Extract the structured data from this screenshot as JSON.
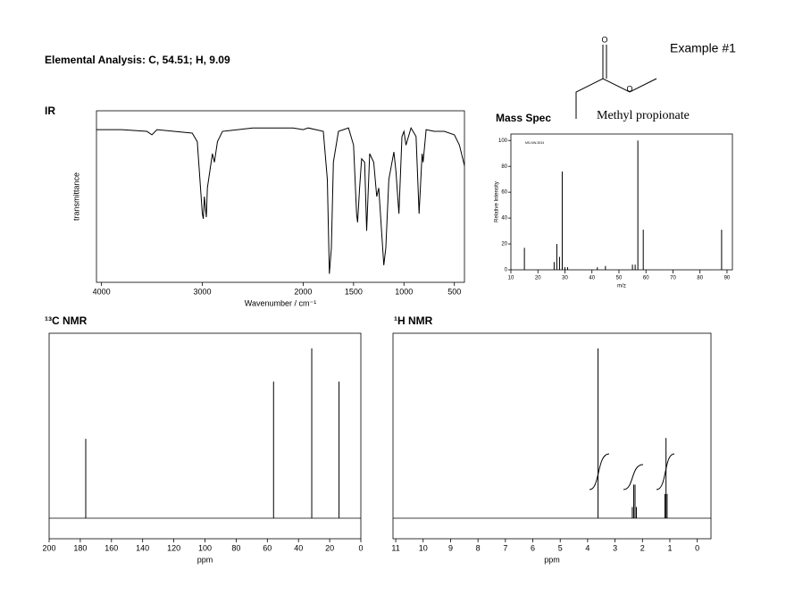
{
  "header": {
    "analysis": "Elemental Analysis: C, 54.51; H, 9.09",
    "example": "Example #1",
    "compound": "Methyl propionate"
  },
  "chart_data": [
    {
      "type": "line",
      "title": "IR",
      "xlabel": "Wavenumber / cm⁻¹",
      "ylabel": "transmittance",
      "color": "#000000",
      "xlim": [
        4050,
        400
      ],
      "xticks": [
        4000,
        3000,
        2000,
        1500,
        1000,
        500
      ],
      "ylim": [
        0,
        100
      ],
      "x": [
        4050,
        3800,
        3550,
        3500,
        3450,
        3100,
        3050,
        3000,
        2990,
        2980,
        2960,
        2950,
        2900,
        2880,
        2850,
        2800,
        2500,
        2100,
        2000,
        1950,
        1800,
        1760,
        1740,
        1720,
        1700,
        1650,
        1550,
        1500,
        1470,
        1460,
        1440,
        1420,
        1390,
        1370,
        1340,
        1300,
        1270,
        1250,
        1200,
        1180,
        1150,
        1100,
        1080,
        1050,
        1020,
        1000,
        980,
        930,
        880,
        850,
        820,
        810,
        780,
        700,
        600,
        500,
        450,
        400
      ],
      "values": [
        89,
        89,
        88,
        86,
        89,
        87,
        82,
        40,
        37,
        50,
        38,
        55,
        75,
        70,
        82,
        88,
        90,
        90,
        89,
        90,
        88,
        60,
        5,
        20,
        70,
        88,
        90,
        80,
        40,
        35,
        55,
        72,
        70,
        30,
        75,
        70,
        50,
        55,
        10,
        20,
        60,
        76,
        65,
        40,
        85,
        88,
        80,
        90,
        85,
        40,
        75,
        70,
        89,
        88,
        88,
        86,
        80,
        68
      ]
    },
    {
      "type": "bar",
      "title": "Mass Spec",
      "xlabel": "m/z",
      "ylabel": "Relative Intensity",
      "code": "MS-NW-3034",
      "color": "#000000",
      "xlim": [
        10,
        92
      ],
      "xticks": [
        10,
        20,
        30,
        40,
        50,
        60,
        70,
        80,
        90
      ],
      "ylim": [
        0,
        105
      ],
      "yticks": [
        0,
        20,
        40,
        60,
        80,
        100
      ],
      "x": [
        15,
        26,
        27,
        28,
        29,
        30,
        31,
        42,
        45,
        55,
        56,
        57,
        59,
        88
      ],
      "values": [
        17,
        6,
        20,
        10,
        76,
        2,
        2,
        2,
        3,
        4,
        4,
        100,
        31,
        31
      ]
    },
    {
      "type": "bar",
      "title": "¹³C NMR",
      "xlabel": "ppm",
      "color": "#000000",
      "xlim": [
        200,
        0
      ],
      "xticks": [
        200,
        180,
        160,
        140,
        120,
        100,
        80,
        60,
        40,
        20,
        0
      ],
      "x": [
        176.5,
        56,
        31.5,
        14
      ],
      "values": [
        43,
        74,
        92,
        74
      ]
    },
    {
      "type": "bar",
      "title": "¹H NMR",
      "xlabel": "ppm",
      "color": "#000000",
      "xlim": [
        11.1,
        -0.5
      ],
      "xticks": [
        11,
        10,
        9,
        8,
        7,
        6,
        5,
        4,
        3,
        2,
        1,
        0
      ],
      "x": [
        3.62,
        2.37,
        2.32,
        2.27,
        2.22,
        1.18,
        1.14,
        1.1
      ],
      "values": [
        91,
        6,
        18,
        18,
        6,
        13,
        43,
        13
      ]
    }
  ]
}
